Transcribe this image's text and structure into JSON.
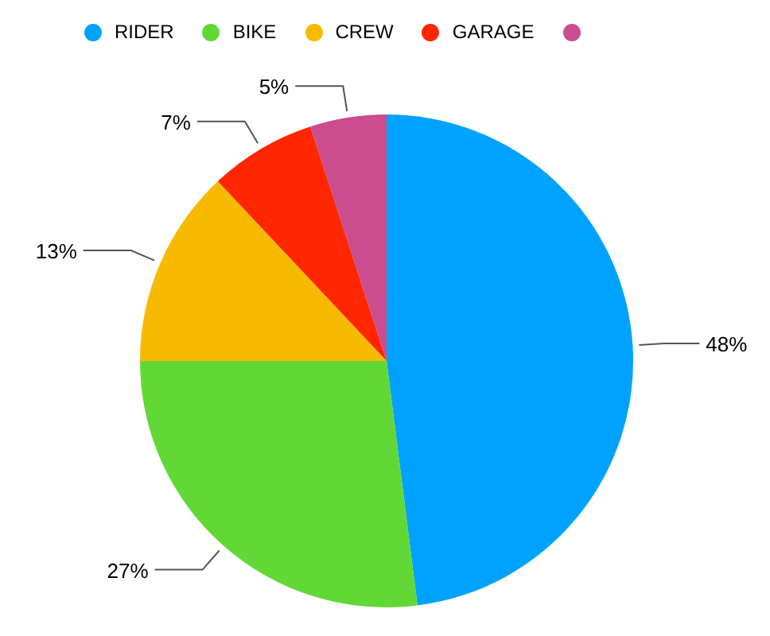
{
  "chart_data": {
    "type": "pie",
    "categories": [
      "RIDER",
      "BIKE",
      "CREW",
      "GARAGE",
      null
    ],
    "values": [
      48,
      27,
      13,
      7,
      5
    ],
    "colors": [
      "#00a2ff",
      "#61d836",
      "#f8ba00",
      "#ff2600",
      "#c94d8f"
    ],
    "value_labels": [
      "48%",
      "27%",
      "13%",
      "7%",
      "5%"
    ],
    "legend": "top"
  }
}
